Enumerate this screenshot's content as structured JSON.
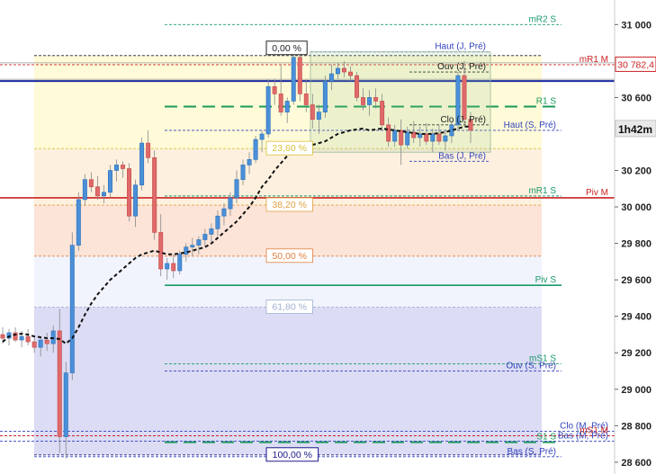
{
  "chart_data": {
    "type": "candlestick",
    "title": "",
    "xlabel": "",
    "ylabel": "",
    "ylim": [
      28560,
      31110
    ],
    "grid": false,
    "y_ticks": [
      {
        "value": 31000,
        "label": "31 000"
      },
      {
        "value": 30600,
        "label": "30 600"
      },
      {
        "value": 30200,
        "label": "30 200"
      },
      {
        "value": 30000,
        "label": "30 000"
      },
      {
        "value": 29800,
        "label": "29 800"
      },
      {
        "value": 29600,
        "label": "29 600"
      },
      {
        "value": 29400,
        "label": "29 400"
      },
      {
        "value": 29200,
        "label": "29 200"
      },
      {
        "value": 29000,
        "label": "29 000"
      },
      {
        "value": 28800,
        "label": "28 800"
      },
      {
        "value": 28600,
        "label": "28 600"
      }
    ],
    "price_tag": {
      "value": 30782.4,
      "label": "30 782,4",
      "color": "#cc2222"
    },
    "timer_tag": {
      "value": 30430,
      "label": "1h42m"
    },
    "fib_levels": [
      {
        "label": "0,00 %",
        "value": 30830,
        "color": "#222222",
        "fill": "#ffffee"
      },
      {
        "label": "23,60 %",
        "value": 30320,
        "color": "#d8c23a",
        "fill": "#fffbd8"
      },
      {
        "label": "38,20 %",
        "value": 30010,
        "color": "#e0a040",
        "fill": "#fdf0de"
      },
      {
        "label": "50,00 %",
        "value": 29730,
        "color": "#e08040",
        "fill": "#fce4d8"
      },
      {
        "label": "61,80 %",
        "value": 29450,
        "color": "#a0b0d0",
        "fill": "#f2f4fd"
      },
      {
        "label": "100,00 %",
        "value": 28640,
        "color": "#1a1a8a",
        "fill": "#dcdcf5"
      }
    ],
    "levels": [
      {
        "label": "mR2 S",
        "value": 31000,
        "color": "#1a9a6a",
        "style": "dashed"
      },
      {
        "label": "Haut (J, Pré)",
        "value": 30850,
        "color": "#3344bb",
        "style": "dashed"
      },
      {
        "label": "mR1 M",
        "value": 30780,
        "color": "#cc2222",
        "style": "dashed"
      },
      {
        "label": "Ouv (J, Pré)",
        "value": 30740,
        "color": "#222222",
        "style": "dashed"
      },
      {
        "label": "R1 S",
        "value": 30550,
        "color": "#1a9a5a",
        "style": "long-dash"
      },
      {
        "label": "Clo (J, Pré)",
        "value": 30450,
        "color": "#222222",
        "style": "dashed"
      },
      {
        "label": "Haut (S, Pré)",
        "value": 30420,
        "color": "#3344bb",
        "style": "dashed"
      },
      {
        "label": "Bas (J, Pré)",
        "value": 30250,
        "color": "#3344bb",
        "style": "dashed"
      },
      {
        "label": "mR1 S",
        "value": 30060,
        "color": "#1a9a6a",
        "style": "dashed"
      },
      {
        "label": "Piv M",
        "value": 30050,
        "color": "#cc2222",
        "style": "solid"
      },
      {
        "label": "Piv S",
        "value": 29570,
        "color": "#1a9a6a",
        "style": "solid"
      },
      {
        "label": "mS1 S",
        "value": 29140,
        "color": "#1a9a6a",
        "style": "dashed"
      },
      {
        "label": "Ouv (S, Pré)",
        "value": 29100,
        "color": "#3344bb",
        "style": "dashed"
      },
      {
        "label": "Clo (M, Pré)",
        "value": 28770,
        "color": "#3344bb",
        "style": "dashed"
      },
      {
        "label": "mS1 M",
        "value": 28745,
        "color": "#cc2222",
        "style": "dashed"
      },
      {
        "label": "S1 S",
        "value": 28710,
        "color": "#1a9a5a",
        "style": "long-dash"
      },
      {
        "label": "Bas (M, Pré)",
        "value": 28715,
        "color": "#3344bb",
        "style": "dashed"
      },
      {
        "label": "Bas (S, Pré)",
        "value": 28630,
        "color": "#3344bb",
        "style": "dashed"
      }
    ],
    "reference_lines": [
      {
        "value": 30690,
        "color": "#1a2aa0",
        "width": 2
      },
      {
        "value": 30050,
        "color": "#cc2222",
        "width": 1.6
      },
      {
        "value": 30790,
        "color": "#999999",
        "width": 0.8
      },
      {
        "value": 30700,
        "color": "#999999",
        "width": 0.8
      }
    ],
    "candles": [
      {
        "o": 29300,
        "h": 29340,
        "l": 29250,
        "c": 29280
      },
      {
        "o": 29280,
        "h": 29330,
        "l": 29240,
        "c": 29310
      },
      {
        "o": 29310,
        "h": 29340,
        "l": 29260,
        "c": 29270
      },
      {
        "o": 29270,
        "h": 29320,
        "l": 29230,
        "c": 29290
      },
      {
        "o": 29290,
        "h": 29330,
        "l": 29240,
        "c": 29260
      },
      {
        "o": 29260,
        "h": 29290,
        "l": 29200,
        "c": 29230
      },
      {
        "o": 29230,
        "h": 29290,
        "l": 29180,
        "c": 29270
      },
      {
        "o": 29270,
        "h": 29310,
        "l": 29210,
        "c": 29250
      },
      {
        "o": 29250,
        "h": 29350,
        "l": 29200,
        "c": 29320
      },
      {
        "o": 29320,
        "h": 29440,
        "l": 28650,
        "c": 28740
      },
      {
        "o": 28740,
        "h": 29150,
        "l": 28620,
        "c": 29090
      },
      {
        "o": 29090,
        "h": 29860,
        "l": 29050,
        "c": 29790
      },
      {
        "o": 29790,
        "h": 30080,
        "l": 29760,
        "c": 30040
      },
      {
        "o": 30040,
        "h": 30180,
        "l": 30010,
        "c": 30150
      },
      {
        "o": 30150,
        "h": 30190,
        "l": 30080,
        "c": 30110
      },
      {
        "o": 30110,
        "h": 30170,
        "l": 30040,
        "c": 30060
      },
      {
        "o": 30060,
        "h": 30120,
        "l": 30020,
        "c": 30080
      },
      {
        "o": 30080,
        "h": 30230,
        "l": 30050,
        "c": 30200
      },
      {
        "o": 30200,
        "h": 30260,
        "l": 30140,
        "c": 30230
      },
      {
        "o": 30230,
        "h": 30250,
        "l": 30160,
        "c": 30210
      },
      {
        "o": 30210,
        "h": 30240,
        "l": 29920,
        "c": 29950
      },
      {
        "o": 29950,
        "h": 30150,
        "l": 29890,
        "c": 30120
      },
      {
        "o": 30120,
        "h": 30380,
        "l": 30090,
        "c": 30350
      },
      {
        "o": 30350,
        "h": 30420,
        "l": 30240,
        "c": 30270
      },
      {
        "o": 30270,
        "h": 30310,
        "l": 29820,
        "c": 29860
      },
      {
        "o": 29860,
        "h": 29960,
        "l": 29620,
        "c": 29660
      },
      {
        "o": 29660,
        "h": 29720,
        "l": 29600,
        "c": 29690
      },
      {
        "o": 29690,
        "h": 29740,
        "l": 29610,
        "c": 29650
      },
      {
        "o": 29650,
        "h": 29760,
        "l": 29630,
        "c": 29740
      },
      {
        "o": 29740,
        "h": 29800,
        "l": 29700,
        "c": 29780
      },
      {
        "o": 29780,
        "h": 29830,
        "l": 29730,
        "c": 29790
      },
      {
        "o": 29790,
        "h": 29840,
        "l": 29740,
        "c": 29820
      },
      {
        "o": 29820,
        "h": 29880,
        "l": 29780,
        "c": 29850
      },
      {
        "o": 29850,
        "h": 29910,
        "l": 29800,
        "c": 29880
      },
      {
        "o": 29880,
        "h": 29980,
        "l": 29840,
        "c": 29950
      },
      {
        "o": 29950,
        "h": 30020,
        "l": 29900,
        "c": 29990
      },
      {
        "o": 29990,
        "h": 30080,
        "l": 29950,
        "c": 30050
      },
      {
        "o": 30050,
        "h": 30200,
        "l": 30020,
        "c": 30150
      },
      {
        "o": 30150,
        "h": 30260,
        "l": 30120,
        "c": 30230
      },
      {
        "o": 30230,
        "h": 30300,
        "l": 30180,
        "c": 30260
      },
      {
        "o": 30260,
        "h": 30390,
        "l": 30240,
        "c": 30370
      },
      {
        "o": 30370,
        "h": 30420,
        "l": 30300,
        "c": 30400
      },
      {
        "o": 30400,
        "h": 30700,
        "l": 30380,
        "c": 30660
      },
      {
        "o": 30660,
        "h": 30700,
        "l": 30560,
        "c": 30620
      },
      {
        "o": 30620,
        "h": 30780,
        "l": 30500,
        "c": 30520
      },
      {
        "o": 30520,
        "h": 30600,
        "l": 30460,
        "c": 30580
      },
      {
        "o": 30580,
        "h": 30850,
        "l": 30560,
        "c": 30820
      },
      {
        "o": 30820,
        "h": 30850,
        "l": 30580,
        "c": 30620
      },
      {
        "o": 30620,
        "h": 30700,
        "l": 30520,
        "c": 30560
      },
      {
        "o": 30560,
        "h": 30620,
        "l": 30430,
        "c": 30480
      },
      {
        "o": 30480,
        "h": 30560,
        "l": 30400,
        "c": 30520
      },
      {
        "o": 30520,
        "h": 30720,
        "l": 30490,
        "c": 30690
      },
      {
        "o": 30690,
        "h": 30780,
        "l": 30640,
        "c": 30730
      },
      {
        "o": 30730,
        "h": 30790,
        "l": 30700,
        "c": 30760
      },
      {
        "o": 30760,
        "h": 30800,
        "l": 30710,
        "c": 30740
      },
      {
        "o": 30740,
        "h": 30770,
        "l": 30690,
        "c": 30720
      },
      {
        "o": 30720,
        "h": 30740,
        "l": 30580,
        "c": 30600
      },
      {
        "o": 30600,
        "h": 30650,
        "l": 30530,
        "c": 30560
      },
      {
        "o": 30560,
        "h": 30640,
        "l": 30500,
        "c": 30600
      },
      {
        "o": 30600,
        "h": 30650,
        "l": 30540,
        "c": 30580
      },
      {
        "o": 30580,
        "h": 30620,
        "l": 30420,
        "c": 30450
      },
      {
        "o": 30450,
        "h": 30490,
        "l": 30330,
        "c": 30360
      },
      {
        "o": 30360,
        "h": 30450,
        "l": 30330,
        "c": 30420
      },
      {
        "o": 30420,
        "h": 30480,
        "l": 30230,
        "c": 30340
      },
      {
        "o": 30340,
        "h": 30440,
        "l": 30320,
        "c": 30410
      },
      {
        "o": 30410,
        "h": 30470,
        "l": 30350,
        "c": 30380
      },
      {
        "o": 30380,
        "h": 30440,
        "l": 30330,
        "c": 30400
      },
      {
        "o": 30400,
        "h": 30460,
        "l": 30340,
        "c": 30360
      },
      {
        "o": 30360,
        "h": 30430,
        "l": 30300,
        "c": 30400
      },
      {
        "o": 30400,
        "h": 30450,
        "l": 30340,
        "c": 30360
      },
      {
        "o": 30360,
        "h": 30420,
        "l": 30310,
        "c": 30390
      },
      {
        "o": 30390,
        "h": 30470,
        "l": 30350,
        "c": 30450
      },
      {
        "o": 30450,
        "h": 30740,
        "l": 30420,
        "c": 30720
      },
      {
        "o": 30720,
        "h": 30800,
        "l": 30440,
        "c": 30480
      },
      {
        "o": 30480,
        "h": 30520,
        "l": 30350,
        "c": 30420
      }
    ],
    "moving_average": [
      29260,
      29290,
      29300,
      29305,
      29300,
      29290,
      29285,
      29280,
      29280,
      29275,
      29250,
      29280,
      29340,
      29410,
      29470,
      29520,
      29560,
      29600,
      29630,
      29660,
      29690,
      29720,
      29740,
      29750,
      29760,
      29750,
      29740,
      29740,
      29745,
      29750,
      29760,
      29770,
      29780,
      29800,
      29830,
      29860,
      29890,
      29920,
      29960,
      30000,
      30050,
      30110,
      30150,
      30200,
      30240,
      30280,
      30300,
      30320,
      30330,
      30340,
      30350,
      30360,
      30380,
      30400,
      30410,
      30420,
      30425,
      30430,
      30420,
      30425,
      30430,
      30425,
      30420,
      30415,
      30410,
      30405,
      30400,
      30400,
      30400,
      30405,
      30410,
      30420,
      30430,
      30440,
      30440
    ]
  }
}
